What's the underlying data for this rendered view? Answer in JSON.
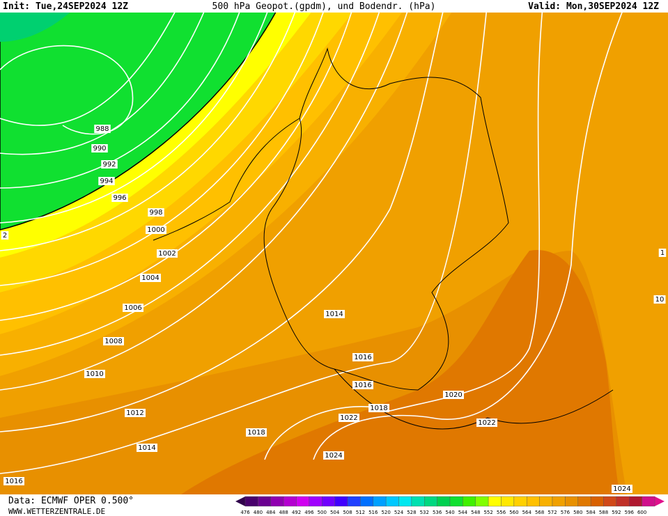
{
  "header": {
    "init": "Init: Tue,24SEP2024 12Z",
    "title": "500 hPa Geopot.(gpdm), und Bodendr. (hPa)",
    "valid": "Valid: Mon,30SEP2024 12Z"
  },
  "isobar_labels": [
    "988",
    "990",
    "992",
    "994",
    "996",
    "998",
    "1000",
    "1002",
    "1004",
    "1006",
    "1008",
    "1010",
    "1012",
    "1014",
    "1016",
    "1014",
    "1016",
    "1016",
    "1018",
    "1018",
    "1020",
    "1022",
    "1022",
    "1024",
    "1024",
    "2",
    "1",
    "10"
  ],
  "footer": {
    "data": "Data: ECMWF OPER 0.500°",
    "site": "WWW.WETTERZENTRALE.DE"
  },
  "legend": {
    "labels": [
      476,
      480,
      484,
      488,
      492,
      496,
      500,
      504,
      508,
      512,
      516,
      520,
      524,
      528,
      532,
      536,
      540,
      544,
      548,
      552,
      556,
      560,
      564,
      568,
      572,
      576,
      580,
      584,
      588,
      592,
      596,
      600
    ],
    "colors": [
      "#48006c",
      "#6a0090",
      "#9000b0",
      "#b400d0",
      "#d000f0",
      "#a000ff",
      "#7000ff",
      "#4000ff",
      "#2040ff",
      "#0070ff",
      "#00a0ff",
      "#00c8ff",
      "#00e8f0",
      "#00e0b0",
      "#00d880",
      "#00d050",
      "#10e030",
      "#40f000",
      "#80ff00",
      "#ffff00",
      "#ffe800",
      "#ffd000",
      "#ffc000",
      "#f8b000",
      "#f0a000",
      "#e89000",
      "#e07800",
      "#d86000",
      "#d04818",
      "#c03028",
      "#b01830",
      "#d0108c"
    ]
  }
}
